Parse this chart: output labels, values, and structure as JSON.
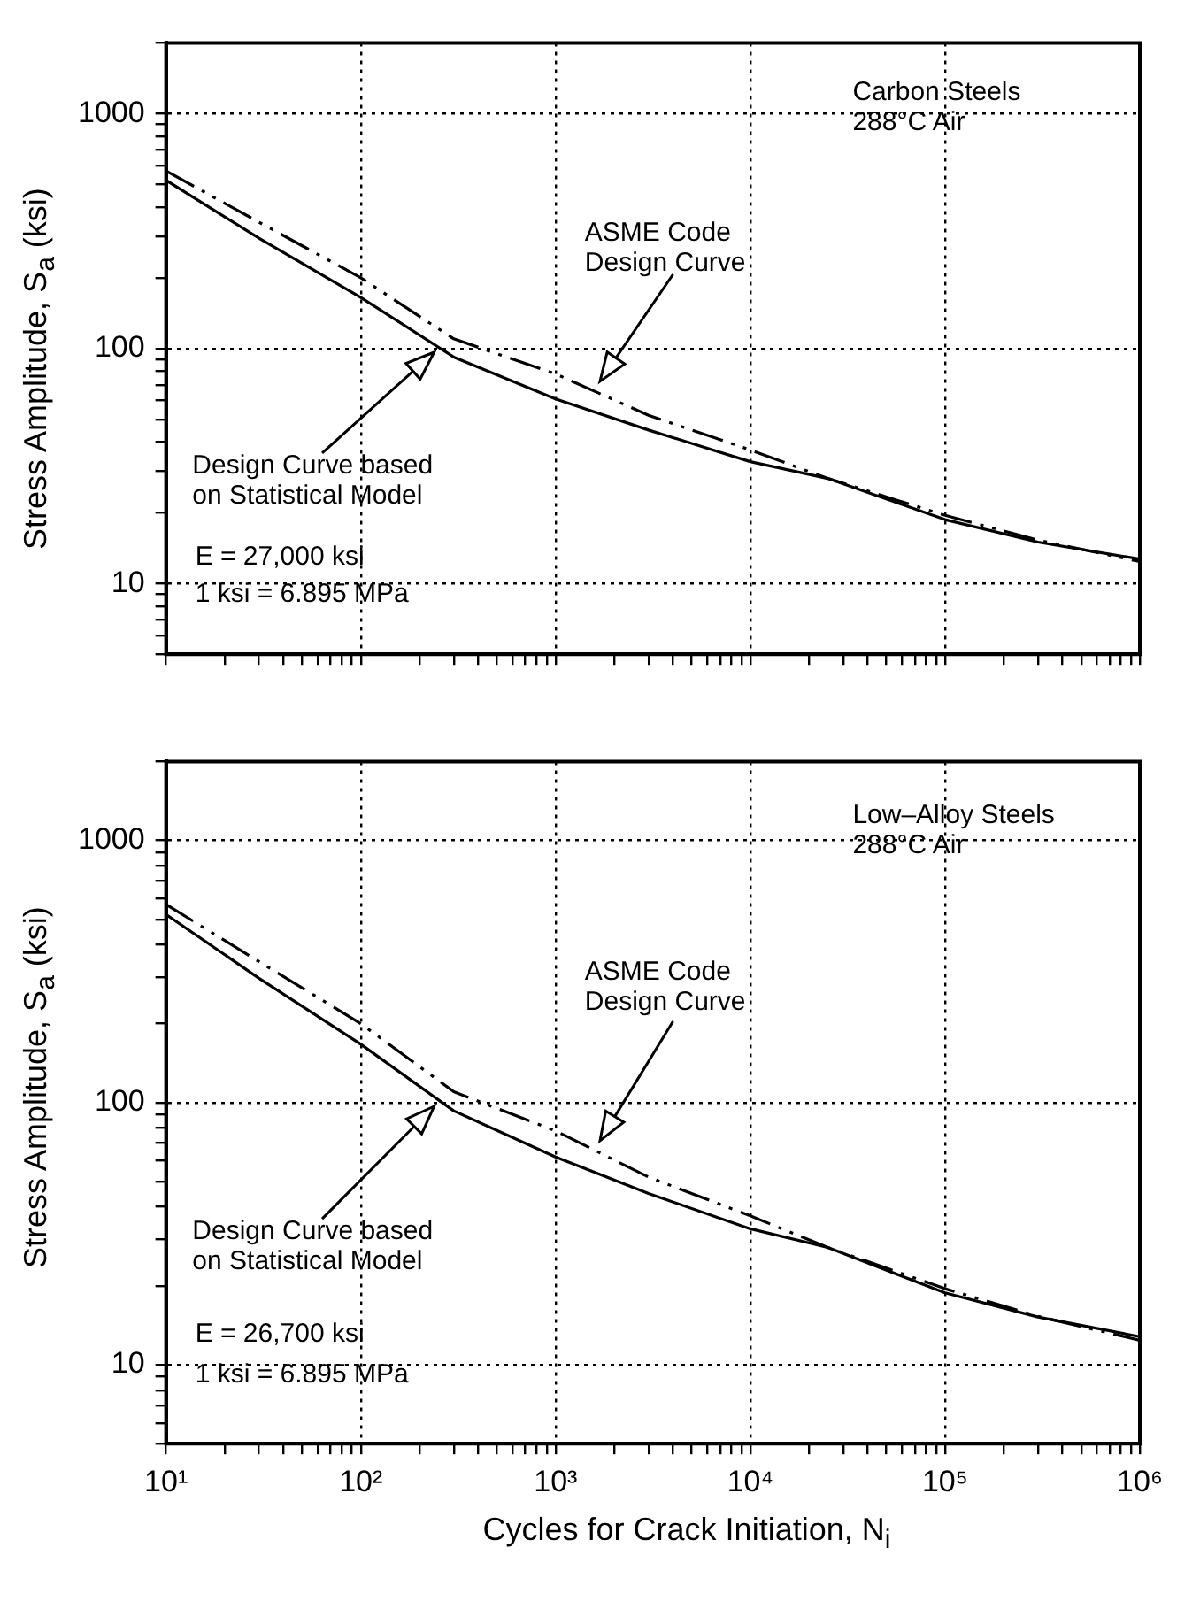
{
  "chart_data": [
    {
      "type": "line",
      "ylabel": "Stress Amplitude, S$_{a}$ (ksi)",
      "log": "xy",
      "grid": true,
      "tick_labels": "y",
      "xlim": [
        10,
        1000000
      ],
      "ylim": [
        5,
        2000
      ],
      "xticks": [
        {
          "value": 10,
          "label": null
        },
        {
          "value": 20,
          "label": null
        },
        {
          "value": 30,
          "label": null
        },
        {
          "value": 40,
          "label": null
        },
        {
          "value": 50,
          "label": null
        },
        {
          "value": 60,
          "label": null
        },
        {
          "value": 70,
          "label": null
        },
        {
          "value": 80,
          "label": null
        },
        {
          "value": 90,
          "label": null
        },
        {
          "value": 100,
          "label": null
        },
        {
          "value": 200,
          "label": null
        },
        {
          "value": 300,
          "label": null
        },
        {
          "value": 400,
          "label": null
        },
        {
          "value": 500,
          "label": null
        },
        {
          "value": 600,
          "label": null
        },
        {
          "value": 700,
          "label": null
        },
        {
          "value": 800,
          "label": null
        },
        {
          "value": 900,
          "label": null
        },
        {
          "value": 1000,
          "label": null
        },
        {
          "value": 2000,
          "label": null
        },
        {
          "value": 3000,
          "label": null
        },
        {
          "value": 4000,
          "label": null
        },
        {
          "value": 5000,
          "label": null
        },
        {
          "value": 6000,
          "label": null
        },
        {
          "value": 7000,
          "label": null
        },
        {
          "value": 8000,
          "label": null
        },
        {
          "value": 9000,
          "label": null
        },
        {
          "value": 10000,
          "label": null
        },
        {
          "value": 20000,
          "label": null
        },
        {
          "value": 30000,
          "label": null
        },
        {
          "value": 40000,
          "label": null
        },
        {
          "value": 50000,
          "label": null
        },
        {
          "value": 60000,
          "label": null
        },
        {
          "value": 70000,
          "label": null
        },
        {
          "value": 80000,
          "label": null
        },
        {
          "value": 90000,
          "label": null
        },
        {
          "value": 100000,
          "label": null
        },
        {
          "value": 200000,
          "label": null
        },
        {
          "value": 300000,
          "label": null
        },
        {
          "value": 400000,
          "label": null
        },
        {
          "value": 500000,
          "label": null
        },
        {
          "value": 600000,
          "label": null
        },
        {
          "value": 700000,
          "label": null
        },
        {
          "value": 800000,
          "label": null
        },
        {
          "value": 900000,
          "label": null
        },
        {
          "value": 1000000,
          "label": null
        }
      ],
      "yticks": [
        {
          "value": 5,
          "label": null
        },
        {
          "value": 6,
          "label": null
        },
        {
          "value": 7,
          "label": null
        },
        {
          "value": 8,
          "label": null
        },
        {
          "value": 9,
          "label": null
        },
        10,
        {
          "value": 20,
          "label": null
        },
        {
          "value": 30,
          "label": null
        },
        {
          "value": 40,
          "label": null
        },
        {
          "value": 50,
          "label": null
        },
        {
          "value": 60,
          "label": null
        },
        {
          "value": 70,
          "label": null
        },
        {
          "value": 80,
          "label": null
        },
        {
          "value": 90,
          "label": null
        },
        100,
        {
          "value": 200,
          "label": null
        },
        {
          "value": 300,
          "label": null
        },
        {
          "value": 400,
          "label": null
        },
        {
          "value": 500,
          "label": null
        },
        {
          "value": 600,
          "label": null
        },
        {
          "value": 700,
          "label": null
        },
        {
          "value": 800,
          "label": null
        },
        {
          "value": 900,
          "label": null
        },
        1000,
        {
          "value": 2000,
          "label": null
        }
      ],
      "x": [
        10,
        30,
        100,
        300,
        1000,
        3000,
        10000,
        25000,
        100000,
        300000,
        1000000
      ],
      "series": [
        {
          "color": "#000000",
          "line_style": "solid",
          "values": [
            520,
            295,
            165,
            92,
            61,
            45,
            33,
            28,
            18.7,
            15,
            12.7
          ]
        },
        {
          "color": "#000000",
          "line_style": "dashed",
          "values": [
            570,
            345,
            200,
            110,
            78,
            52,
            37,
            28,
            19.5,
            15.3,
            12.4
          ]
        }
      ],
      "annotations": [
        "Carbon Steels 288°C Air",
        "ASME Code Design Curve",
        "Design Curve based on Statistical Model",
        "E = 27,000 ksi",
        "1 ksi = 6.895 MPa"
      ]
    },
    {
      "type": "line",
      "xlabel": "Cycles for Crack Initiation, N$_{i}$",
      "ylabel": "Stress Amplitude, S$_{a}$ (ksi)",
      "log": "xy",
      "grid": true,
      "xlim": [
        10,
        1000000
      ],
      "ylim": [
        5,
        2000
      ],
      "xticks": [
        {
          "value": 10,
          "label": "10¹"
        },
        {
          "value": 20,
          "label": null
        },
        {
          "value": 30,
          "label": null
        },
        {
          "value": 40,
          "label": null
        },
        {
          "value": 50,
          "label": null
        },
        {
          "value": 60,
          "label": null
        },
        {
          "value": 70,
          "label": null
        },
        {
          "value": 80,
          "label": null
        },
        {
          "value": 90,
          "label": null
        },
        {
          "value": 100,
          "label": "10²"
        },
        {
          "value": 200,
          "label": null
        },
        {
          "value": 300,
          "label": null
        },
        {
          "value": 400,
          "label": null
        },
        {
          "value": 500,
          "label": null
        },
        {
          "value": 600,
          "label": null
        },
        {
          "value": 700,
          "label": null
        },
        {
          "value": 800,
          "label": null
        },
        {
          "value": 900,
          "label": null
        },
        {
          "value": 1000,
          "label": "10³"
        },
        {
          "value": 2000,
          "label": null
        },
        {
          "value": 3000,
          "label": null
        },
        {
          "value": 4000,
          "label": null
        },
        {
          "value": 5000,
          "label": null
        },
        {
          "value": 6000,
          "label": null
        },
        {
          "value": 7000,
          "label": null
        },
        {
          "value": 8000,
          "label": null
        },
        {
          "value": 9000,
          "label": null
        },
        {
          "value": 10000,
          "label": "10⁴"
        },
        {
          "value": 20000,
          "label": null
        },
        {
          "value": 30000,
          "label": null
        },
        {
          "value": 40000,
          "label": null
        },
        {
          "value": 50000,
          "label": null
        },
        {
          "value": 60000,
          "label": null
        },
        {
          "value": 70000,
          "label": null
        },
        {
          "value": 80000,
          "label": null
        },
        {
          "value": 90000,
          "label": null
        },
        {
          "value": 100000,
          "label": "10⁵"
        },
        {
          "value": 200000,
          "label": null
        },
        {
          "value": 300000,
          "label": null
        },
        {
          "value": 400000,
          "label": null
        },
        {
          "value": 500000,
          "label": null
        },
        {
          "value": 600000,
          "label": null
        },
        {
          "value": 700000,
          "label": null
        },
        {
          "value": 800000,
          "label": null
        },
        {
          "value": 900000,
          "label": null
        },
        {
          "value": 1000000,
          "label": "10⁶"
        }
      ],
      "yticks": [
        {
          "value": 5,
          "label": null
        },
        {
          "value": 6,
          "label": null
        },
        {
          "value": 7,
          "label": null
        },
        {
          "value": 8,
          "label": null
        },
        {
          "value": 9,
          "label": null
        },
        10,
        {
          "value": 20,
          "label": null
        },
        {
          "value": 30,
          "label": null
        },
        {
          "value": 40,
          "label": null
        },
        {
          "value": 50,
          "label": null
        },
        {
          "value": 60,
          "label": null
        },
        {
          "value": 70,
          "label": null
        },
        {
          "value": 80,
          "label": null
        },
        {
          "value": 90,
          "label": null
        },
        100,
        {
          "value": 200,
          "label": null
        },
        {
          "value": 300,
          "label": null
        },
        {
          "value": 400,
          "label": null
        },
        {
          "value": 500,
          "label": null
        },
        {
          "value": 600,
          "label": null
        },
        {
          "value": 700,
          "label": null
        },
        {
          "value": 800,
          "label": null
        },
        {
          "value": 900,
          "label": null
        },
        1000,
        {
          "value": 2000,
          "label": null
        }
      ],
      "x": [
        10,
        30,
        100,
        300,
        1000,
        3000,
        10000,
        25000,
        100000,
        300000,
        1000000
      ],
      "series": [
        {
          "color": "#000000",
          "line_style": "solid",
          "values": [
            522,
            298,
            167,
            93,
            62,
            45,
            33,
            28,
            18.8,
            15.2,
            12.8
          ]
        },
        {
          "color": "#000000",
          "line_style": "dashed",
          "values": [
            570,
            345,
            200,
            110,
            78,
            52,
            37,
            28,
            19.5,
            15.3,
            12.4
          ]
        }
      ],
      "annotations": [
        "Low–Alloy Steels 288°C Air",
        "ASME Code Design Curve",
        "Design Curve based on Statistical Model",
        "E = 26,700 ksi",
        "1 ksi = 6.895 MPa"
      ]
    }
  ]
}
